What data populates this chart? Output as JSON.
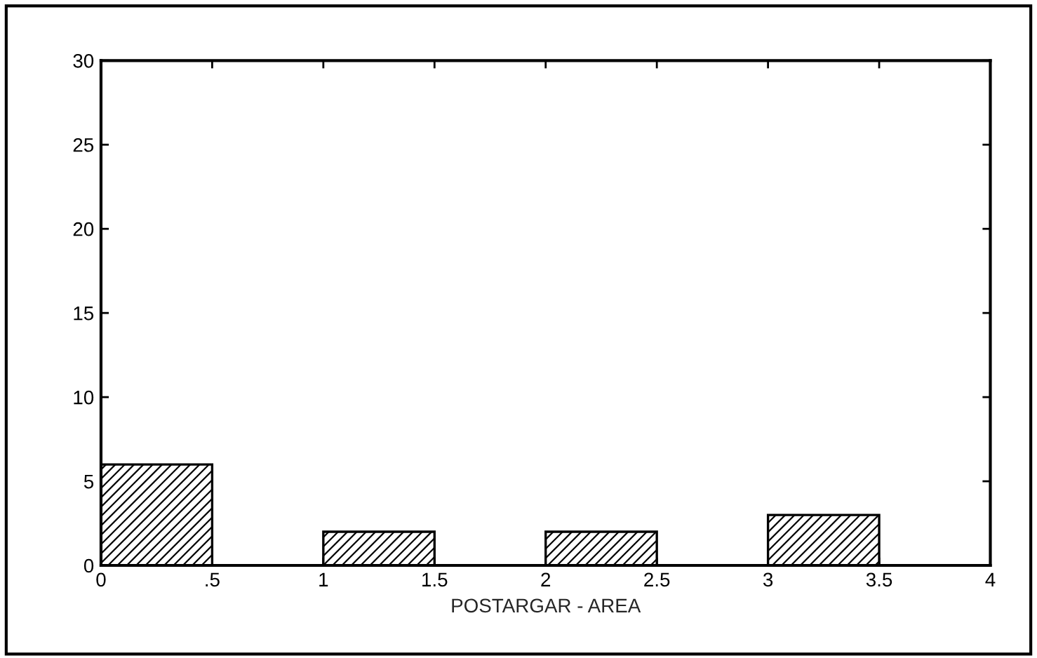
{
  "chart_data": {
    "type": "histogram",
    "xlabel": "POSTARGAR - AREA",
    "bins": [
      0,
      0.5,
      1,
      1.5,
      2,
      2.5,
      3,
      3.5
    ],
    "values": [
      6,
      0,
      2,
      0,
      2,
      0,
      3
    ],
    "color": "#000000",
    "xlim": [
      0,
      4
    ],
    "xticks": [
      0,
      {
        "value": 0.5,
        "label": ".5"
      },
      1,
      1.5,
      2,
      2.5,
      3,
      3.5,
      4
    ],
    "ylim": [
      0,
      30
    ],
    "yticks": [
      0,
      5,
      10,
      15,
      20,
      25,
      30
    ],
    "grid": false
  }
}
